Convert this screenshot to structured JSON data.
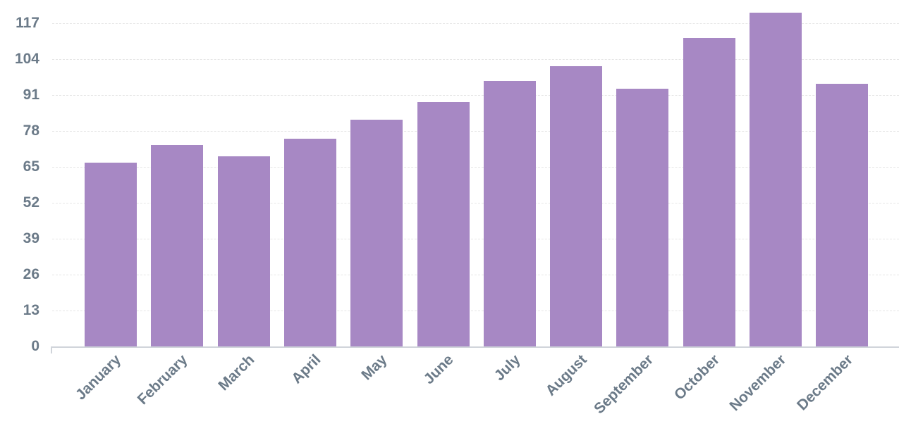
{
  "chart_data": {
    "type": "bar",
    "title": "",
    "xlabel": "",
    "ylabel": "",
    "categories": [
      "January",
      "February",
      "March",
      "April",
      "May",
      "June",
      "July",
      "August",
      "September",
      "October",
      "November",
      "December"
    ],
    "values": [
      66.5,
      72.9,
      68.8,
      75.2,
      82.1,
      88.5,
      96.1,
      101.5,
      93.3,
      111.6,
      120.8,
      95.1
    ],
    "yticks": [
      0,
      13,
      26,
      39,
      52,
      65,
      78,
      91,
      104,
      117
    ],
    "ylim": [
      0,
      121
    ],
    "grid": true,
    "legend": null,
    "bar_color": "#a788c4",
    "tick_label_color": "#6b7a88"
  },
  "ytick_labels": [
    "0",
    "13",
    "26",
    "39",
    "52",
    "65",
    "78",
    "91",
    "104",
    "117"
  ],
  "xtick_labels": [
    "January",
    "February",
    "March",
    "April",
    "May",
    "June",
    "July",
    "August",
    "September",
    "October",
    "November",
    "December"
  ]
}
